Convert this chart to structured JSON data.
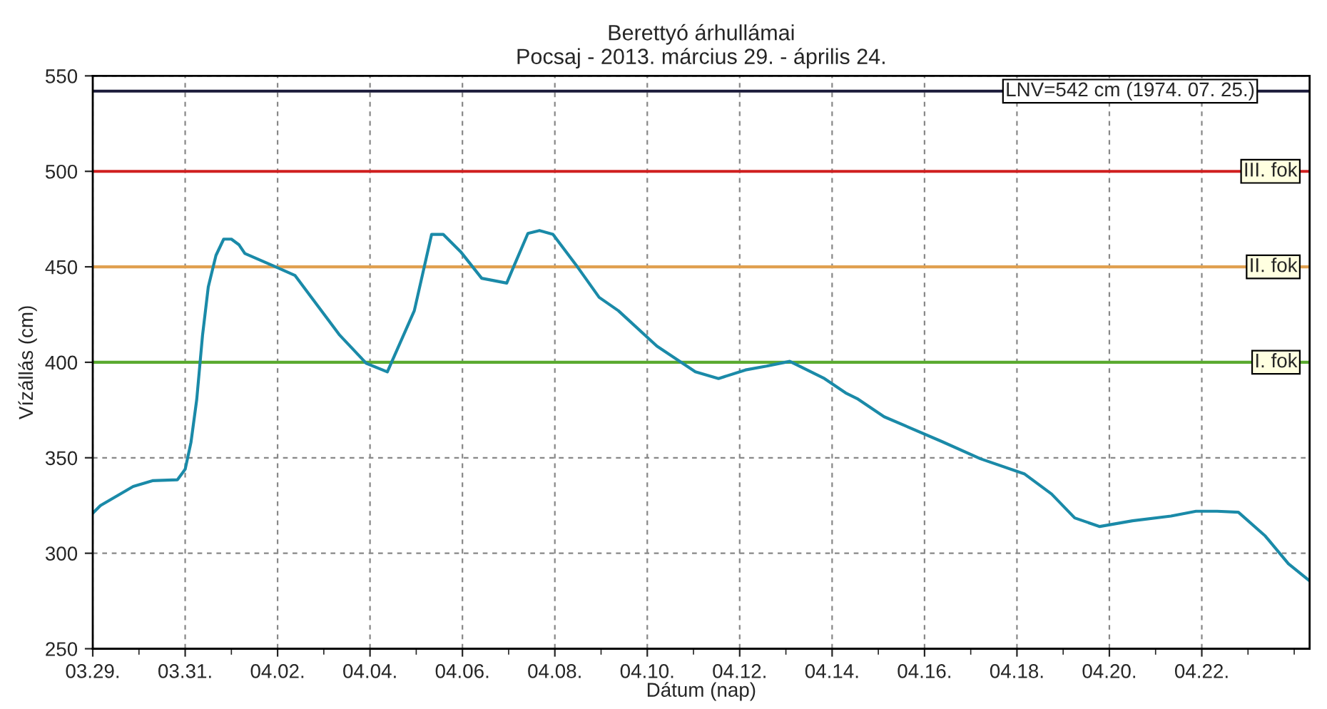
{
  "chart_data": {
    "type": "line",
    "title": "Berettyó árhullámai\nPocsaj - 2013. március 29. - április 24.",
    "xlabel": "Dátum (nap)",
    "ylabel": "Vízállás (cm)",
    "x": [
      "2013-03-29T00:00",
      "2013-03-29T04:00",
      "2013-03-29T21:00",
      "2013-03-30T07:00",
      "2013-03-30T20:00",
      "2013-03-31T00:00",
      "2013-03-31T03:00",
      "2013-03-31T06:00",
      "2013-03-31T09:00",
      "2013-03-31T12:00",
      "2013-03-31T16:00",
      "2013-03-31T20:00",
      "2013-04-01T00:00",
      "2013-04-01T04:00",
      "2013-04-01T07:00",
      "2013-04-01T23:00",
      "2013-04-02T09:00",
      "2013-04-03T08:00",
      "2013-04-03T22:00",
      "2013-04-04T09:00",
      "2013-04-04T23:00",
      "2013-04-05T08:00",
      "2013-04-05T14:00",
      "2013-04-05T23:00",
      "2013-04-06T10:00",
      "2013-04-06T23:00",
      "2013-04-07T03:00",
      "2013-04-07T10:00",
      "2013-04-07T16:00",
      "2013-04-07T23:00",
      "2013-04-08T11:00",
      "2013-04-08T23:00",
      "2013-04-09T09:00",
      "2013-04-10T05:00",
      "2013-04-11T01:00",
      "2013-04-11T13:00",
      "2013-04-12T03:00",
      "2013-04-12T14:00",
      "2013-04-13T02:00",
      "2013-04-13T20:00",
      "2013-04-14T07:00",
      "2013-04-14T13:00",
      "2013-04-15T03:00",
      "2013-04-16T09:00",
      "2013-04-17T05:00",
      "2013-04-18T04:00",
      "2013-04-18T18:00",
      "2013-04-19T06:00",
      "2013-04-19T19:00",
      "2013-04-20T12:00",
      "2013-04-21T08:00",
      "2013-04-21T21:00",
      "2013-04-22T08:00",
      "2013-04-22T19:00",
      "2013-04-23T09:00",
      "2013-04-23T21:00",
      "2013-04-24T08:00"
    ],
    "series": [
      {
        "color": "#1a8aa8",
        "values": [
          321,
          325,
          335,
          338,
          338.5,
          344,
          358,
          380.5,
          414,
          439.5,
          456,
          464.5,
          464.5,
          461.5,
          457,
          450,
          445.5,
          414.5,
          399.5,
          395,
          427,
          467,
          467,
          458,
          444,
          441.5,
          451,
          467.5,
          469,
          467,
          451,
          434,
          427,
          408.5,
          395,
          391.5,
          396,
          398,
          400.5,
          391.5,
          384,
          381,
          371.5,
          358.5,
          349.5,
          341.5,
          331,
          318.5,
          314,
          317,
          319.5,
          322,
          322,
          321.5,
          309,
          294.5,
          285.5
        ]
      }
    ],
    "xlim": [
      "2013-03-29T00:00",
      "2013-04-24T08:00"
    ],
    "xticks": [
      {
        "value": "2013-03-29",
        "label": "03.29."
      },
      {
        "value": "2013-03-30",
        "label": null
      },
      {
        "value": "2013-03-31",
        "label": "03.31."
      },
      {
        "value": "2013-04-01",
        "label": null
      },
      {
        "value": "2013-04-02",
        "label": "04.02."
      },
      {
        "value": "2013-04-03",
        "label": null
      },
      {
        "value": "2013-04-04",
        "label": "04.04."
      },
      {
        "value": "2013-04-05",
        "label": null
      },
      {
        "value": "2013-04-06",
        "label": "04.06."
      },
      {
        "value": "2013-04-07",
        "label": null
      },
      {
        "value": "2013-04-08",
        "label": "04.08."
      },
      {
        "value": "2013-04-09",
        "label": null
      },
      {
        "value": "2013-04-10",
        "label": "04.10."
      },
      {
        "value": "2013-04-11",
        "label": null
      },
      {
        "value": "2013-04-12",
        "label": "04.12."
      },
      {
        "value": "2013-04-13",
        "label": null
      },
      {
        "value": "2013-04-14",
        "label": "04.14."
      },
      {
        "value": "2013-04-15",
        "label": null
      },
      {
        "value": "2013-04-16",
        "label": "04.16."
      },
      {
        "value": "2013-04-17",
        "label": null
      },
      {
        "value": "2013-04-18",
        "label": "04.18."
      },
      {
        "value": "2013-04-19",
        "label": null
      },
      {
        "value": "2013-04-20",
        "label": "04.20."
      },
      {
        "value": "2013-04-21",
        "label": null
      },
      {
        "value": "2013-04-22",
        "label": "04.22."
      },
      {
        "value": "2013-04-23",
        "label": null
      },
      {
        "value": "2013-04-24",
        "label": null
      }
    ],
    "ylim": [
      250,
      550
    ],
    "yticks": [
      250,
      300,
      350,
      400,
      450,
      500,
      550
    ],
    "ref_lines": [
      {
        "axis": "y",
        "value": 542,
        "label": "LNV=542 cm (1974. 07. 25.)",
        "color": "#1a1a3a"
      },
      {
        "axis": "y",
        "value": 500,
        "label": "III. fok",
        "color": "#d02020"
      },
      {
        "axis": "y",
        "value": 450,
        "label": "II. fok",
        "color": "#e0a050"
      },
      {
        "axis": "y",
        "value": 400,
        "label": "I. fok",
        "color": "#5aaa30"
      }
    ],
    "grid": true,
    "marker": "none",
    "line_style": "solid"
  }
}
